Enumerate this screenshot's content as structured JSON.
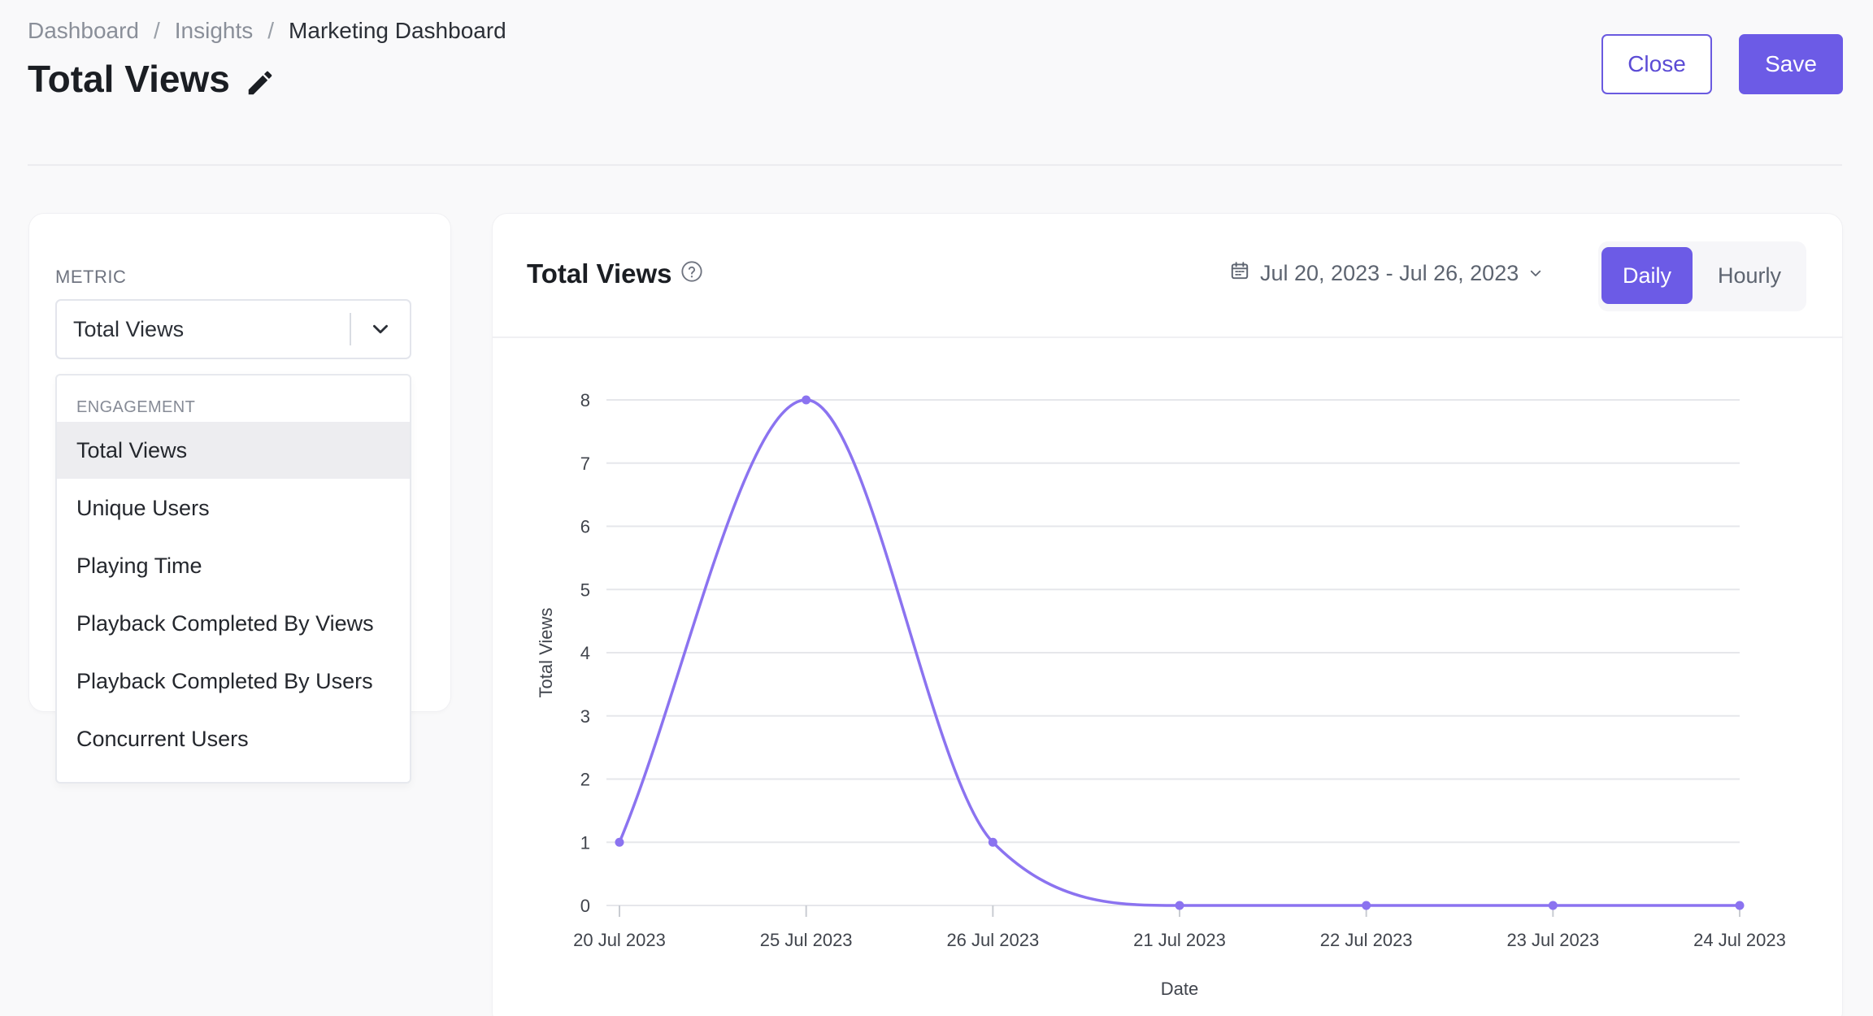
{
  "breadcrumb": {
    "items": [
      "Dashboard",
      "Insights",
      "Marketing Dashboard"
    ],
    "separator": "/"
  },
  "page": {
    "title": "Total Views"
  },
  "actions": {
    "close_label": "Close",
    "save_label": "Save"
  },
  "metric": {
    "label": "METRIC",
    "selected": "Total Views",
    "dropdown": {
      "group": "ENGAGEMENT",
      "items": [
        "Total Views",
        "Unique Users",
        "Playing Time",
        "Playback Completed By Views",
        "Playback Completed By Users",
        "Concurrent Users"
      ]
    }
  },
  "chart_panel": {
    "title": "Total Views",
    "date_range": "Jul 20, 2023 - Jul 26, 2023",
    "granularity": {
      "options": [
        "Daily",
        "Hourly"
      ],
      "selected": "Daily"
    }
  },
  "colors": {
    "accent": "#6c5be6",
    "line": "#8b73f0"
  },
  "chart_data": {
    "type": "line",
    "categories": [
      "20 Jul 2023",
      "25 Jul 2023",
      "26 Jul 2023",
      "21 Jul 2023",
      "22 Jul 2023",
      "23 Jul 2023",
      "24 Jul 2023"
    ],
    "series": [
      {
        "values": [
          1,
          8,
          1,
          0,
          0,
          0,
          0
        ]
      }
    ],
    "xlabel": "Date",
    "ylabel": "Total Views",
    "ylim": [
      0,
      8
    ],
    "yticks": [
      0,
      1,
      2,
      3,
      4,
      5,
      6,
      7,
      8
    ],
    "grid": true,
    "smooth": true
  }
}
